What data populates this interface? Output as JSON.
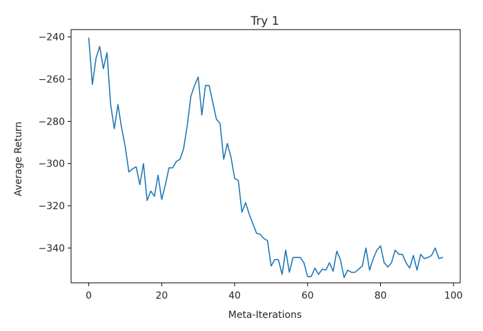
{
  "chart_data": {
    "type": "line",
    "title": "Try 1",
    "xlabel": "Meta-Iterations",
    "ylabel": "Average Return",
    "xlim": [
      -4.85,
      101.85
    ],
    "ylim": [
      -356.5,
      -236.5
    ],
    "xticks": [
      0,
      20,
      40,
      60,
      80,
      100
    ],
    "yticks": [
      -240,
      -260,
      -280,
      -300,
      -320,
      -340
    ],
    "xtick_labels": [
      "0",
      "20",
      "40",
      "60",
      "80",
      "100"
    ],
    "ytick_labels": [
      "−240",
      "−260",
      "−280",
      "−300",
      "−320",
      "−340"
    ],
    "grid": false,
    "line_color": "#1f77b4",
    "series": [
      {
        "x": [
          0,
          1,
          2,
          3,
          4,
          5,
          6,
          7,
          8,
          9,
          10,
          11,
          12,
          13,
          14,
          15,
          16,
          17,
          18,
          19,
          20,
          21,
          22,
          23,
          24,
          25,
          26,
          27,
          28,
          29,
          30,
          31,
          32,
          33,
          34,
          35,
          36,
          37,
          38,
          39,
          40,
          41,
          42,
          43,
          44,
          45,
          46,
          47,
          48,
          49,
          50,
          51,
          52,
          53,
          54,
          55,
          56,
          57,
          58,
          59,
          60,
          61,
          62,
          63,
          64,
          65,
          66,
          67,
          68,
          69,
          70,
          71,
          72,
          73,
          74,
          75,
          76,
          77,
          78,
          79,
          80,
          81,
          82,
          83,
          84,
          85,
          86,
          87,
          88,
          89,
          90,
          91,
          92,
          93,
          94,
          95,
          96,
          97
        ],
        "y": [
          -240.5,
          -262.5,
          -250,
          -244.5,
          -255,
          -247.5,
          -272,
          -283.5,
          -272,
          -283,
          -292,
          -304,
          -302.5,
          -301.5,
          -310,
          -300,
          -317.5,
          -313,
          -315.5,
          -305.5,
          -317,
          -310,
          -302,
          -302,
          -299,
          -298,
          -293,
          -282,
          -268,
          -263,
          -259,
          -277,
          -263,
          -263,
          -271,
          -279,
          -281,
          -298,
          -290.5,
          -297,
          -307,
          -308,
          -323,
          -318.5,
          -324,
          -328.5,
          -333,
          -333.5,
          -335.5,
          -336.5,
          -348.5,
          -345.5,
          -345.5,
          -352.5,
          -341,
          -351.5,
          -344.5,
          -344.5,
          -344.5,
          -347,
          -353.5,
          -353.5,
          -349.5,
          -352.5,
          -350,
          -350.5,
          -347,
          -351,
          -341.5,
          -345.5,
          -354,
          -350.5,
          -351.5,
          -351.5,
          -350,
          -348.5,
          -340,
          -350.5,
          -345,
          -341,
          -339,
          -347,
          -349,
          -347,
          -341,
          -343,
          -343,
          -347,
          -349.5,
          -343.5,
          -350.5,
          -343,
          -345,
          -344.5,
          -343.5,
          -340,
          -345,
          -344.5
        ]
      }
    ]
  }
}
